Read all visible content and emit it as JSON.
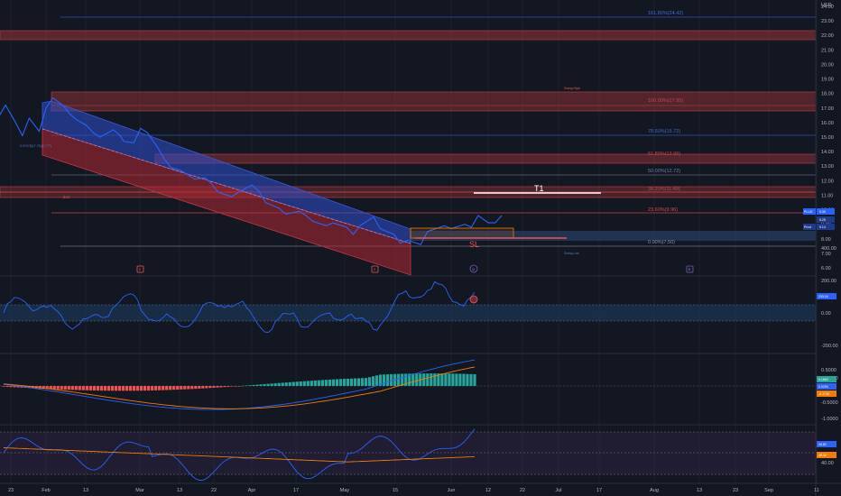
{
  "currency": "USD",
  "price_axis_ticks": [
    "24.00",
    "23.00",
    "22.00",
    "21.00",
    "20.00",
    "19.00",
    "18.00",
    "17.00",
    "16.00",
    "15.00",
    "14.00",
    "13.00",
    "12.00",
    "11.00",
    "10.00",
    "9.00",
    "8.00",
    "7.00",
    "6.00"
  ],
  "osc1_ticks": [
    "400.00",
    "200.00",
    "0.00",
    "-200.00",
    "-400.00"
  ],
  "osc2_ticks": [
    "0.5000",
    "0.0000",
    "-0.5000",
    "-1.0000"
  ],
  "osc3_ticks": [
    "40.00"
  ],
  "x_axis_ticks": [
    "23",
    "Feb",
    "13",
    "Mar",
    "13",
    "22",
    "Apr",
    "17",
    "May",
    "15",
    "Jun",
    "12",
    "22",
    "Jul",
    "17",
    "Aug",
    "13",
    "23",
    "Sep",
    "11"
  ],
  "fib_labels": {
    "f1618": "161.80%(24.42)",
    "f100": "100.00%(17.95)",
    "f786": "78.60%(15.72)",
    "f618": "61.80%(13.96)",
    "f50": "50.00%(12.72)",
    "f382": "38.20%(11.49)",
    "f236": "23.60%(9.96)",
    "f0": "0.00%(7.50)",
    "left": "0.97475(17.75)(17.77)"
  },
  "annotations": {
    "t1": "T1",
    "sl": "SL",
    "bos": "BOS",
    "swing_high": "Swing High",
    "swing_low": "Swing Low",
    "inverse": "Inverse"
  },
  "price_badges": {
    "ticker": "PLUG",
    "ticker_price": "9.35",
    "line_val": "9.25",
    "pivot_label": "Pivot",
    "pivot_val": "9.14"
  },
  "osc_badges": {
    "cci": "233.04",
    "macd_a": "0.1863",
    "macd_b": "0.0290",
    "macd_c": "-2.1740",
    "rsi_a": "58.82",
    "rsi_b": "48.32"
  },
  "event_markers": [
    "E",
    "E",
    "D",
    "E"
  ],
  "colors": {
    "background": "#131722",
    "price_line": "#2962ff",
    "channel_blue": "#3050c8",
    "channel_red": "#b22833",
    "fib_red": "#b33a3a",
    "fib_blue": "#2f55b4",
    "macd_pos": "#26a69a",
    "macd_neg": "#ef5350",
    "orange": "#f57c00"
  },
  "chart_data": {
    "type": "line",
    "ylabel": "USD",
    "ylim": [
      5.5,
      25.0
    ],
    "price": [
      [
        "2023-01-18",
        16.4
      ],
      [
        "2023-01-20",
        17.2
      ],
      [
        "2023-01-23",
        16.0
      ],
      [
        "2023-01-25",
        15.1
      ],
      [
        "2023-01-27",
        16.3
      ],
      [
        "2023-01-30",
        15.4
      ],
      [
        "2023-02-01",
        17.0
      ],
      [
        "2023-02-03",
        17.7
      ],
      [
        "2023-02-06",
        17.2
      ],
      [
        "2023-02-08",
        16.6
      ],
      [
        "2023-02-10",
        16.2
      ],
      [
        "2023-02-13",
        15.8
      ],
      [
        "2023-02-15",
        15.3
      ],
      [
        "2023-02-17",
        15.0
      ],
      [
        "2023-02-21",
        15.5
      ],
      [
        "2023-02-23",
        15.1
      ],
      [
        "2023-02-24",
        14.7
      ],
      [
        "2023-02-27",
        14.6
      ],
      [
        "2023-03-01",
        15.6
      ],
      [
        "2023-03-03",
        15.3
      ],
      [
        "2023-03-06",
        14.3
      ],
      [
        "2023-03-08",
        13.5
      ],
      [
        "2023-03-10",
        12.9
      ],
      [
        "2023-03-13",
        12.7
      ],
      [
        "2023-03-15",
        12.4
      ],
      [
        "2023-03-17",
        12.1
      ],
      [
        "2023-03-20",
        12.2
      ],
      [
        "2023-03-22",
        11.8
      ],
      [
        "2023-03-24",
        11.2
      ],
      [
        "2023-03-28",
        10.9
      ],
      [
        "2023-03-30",
        11.2
      ],
      [
        "2023-04-03",
        11.7
      ],
      [
        "2023-04-05",
        11.3
      ],
      [
        "2023-04-07",
        10.5
      ],
      [
        "2023-04-11",
        10.1
      ],
      [
        "2023-04-13",
        9.7
      ],
      [
        "2023-04-17",
        9.9
      ],
      [
        "2023-04-19",
        9.6
      ],
      [
        "2023-04-21",
        9.2
      ],
      [
        "2023-04-25",
        8.9
      ],
      [
        "2023-04-27",
        9.1
      ],
      [
        "2023-05-01",
        8.8
      ],
      [
        "2023-05-03",
        8.3
      ],
      [
        "2023-05-05",
        8.9
      ],
      [
        "2023-05-09",
        9.5
      ],
      [
        "2023-05-11",
        8.7
      ],
      [
        "2023-05-15",
        8.3
      ],
      [
        "2023-05-17",
        7.7
      ],
      [
        "2023-05-19",
        7.9
      ],
      [
        "2023-05-23",
        7.6
      ],
      [
        "2023-05-25",
        8.5
      ],
      [
        "2023-05-30",
        8.9
      ],
      [
        "2023-06-01",
        8.7
      ],
      [
        "2023-06-05",
        9.0
      ],
      [
        "2023-06-07",
        8.8
      ],
      [
        "2023-06-09",
        9.6
      ],
      [
        "2023-06-12",
        9.1
      ],
      [
        "2023-06-14",
        9.1
      ],
      [
        "2023-06-16",
        9.6
      ]
    ],
    "fib_levels": [
      {
        "ratio": 1.618,
        "value": 24.42
      },
      {
        "ratio": 1.0,
        "value": 17.95
      },
      {
        "ratio": 0.786,
        "value": 15.72
      },
      {
        "ratio": 0.618,
        "value": 13.96
      },
      {
        "ratio": 0.5,
        "value": 12.72
      },
      {
        "ratio": 0.382,
        "value": 11.49
      },
      {
        "ratio": 0.236,
        "value": 9.96
      },
      {
        "ratio": 0.0,
        "value": 7.5
      }
    ],
    "zones": [
      {
        "kind": "supply",
        "low": 22.8,
        "high": 23.3
      },
      {
        "kind": "supply",
        "low": 17.2,
        "high": 18.8
      },
      {
        "kind": "supply",
        "low": 13.6,
        "high": 14.1
      },
      {
        "kind": "supply",
        "low": 11.1,
        "high": 11.9
      },
      {
        "kind": "demand",
        "low": 7.85,
        "high": 8.65
      }
    ],
    "targets": {
      "t1": 11.4,
      "sl": 8.3
    },
    "oscillator_1": {
      "ylim": [
        -500,
        500
      ],
      "last": 233.04
    },
    "oscillator_2": {
      "ylim": [
        -1.2,
        0.7
      ],
      "last": 0.029
    },
    "oscillator_3": {
      "ylim": [
        20,
        80
      ],
      "last": 58.82
    }
  }
}
